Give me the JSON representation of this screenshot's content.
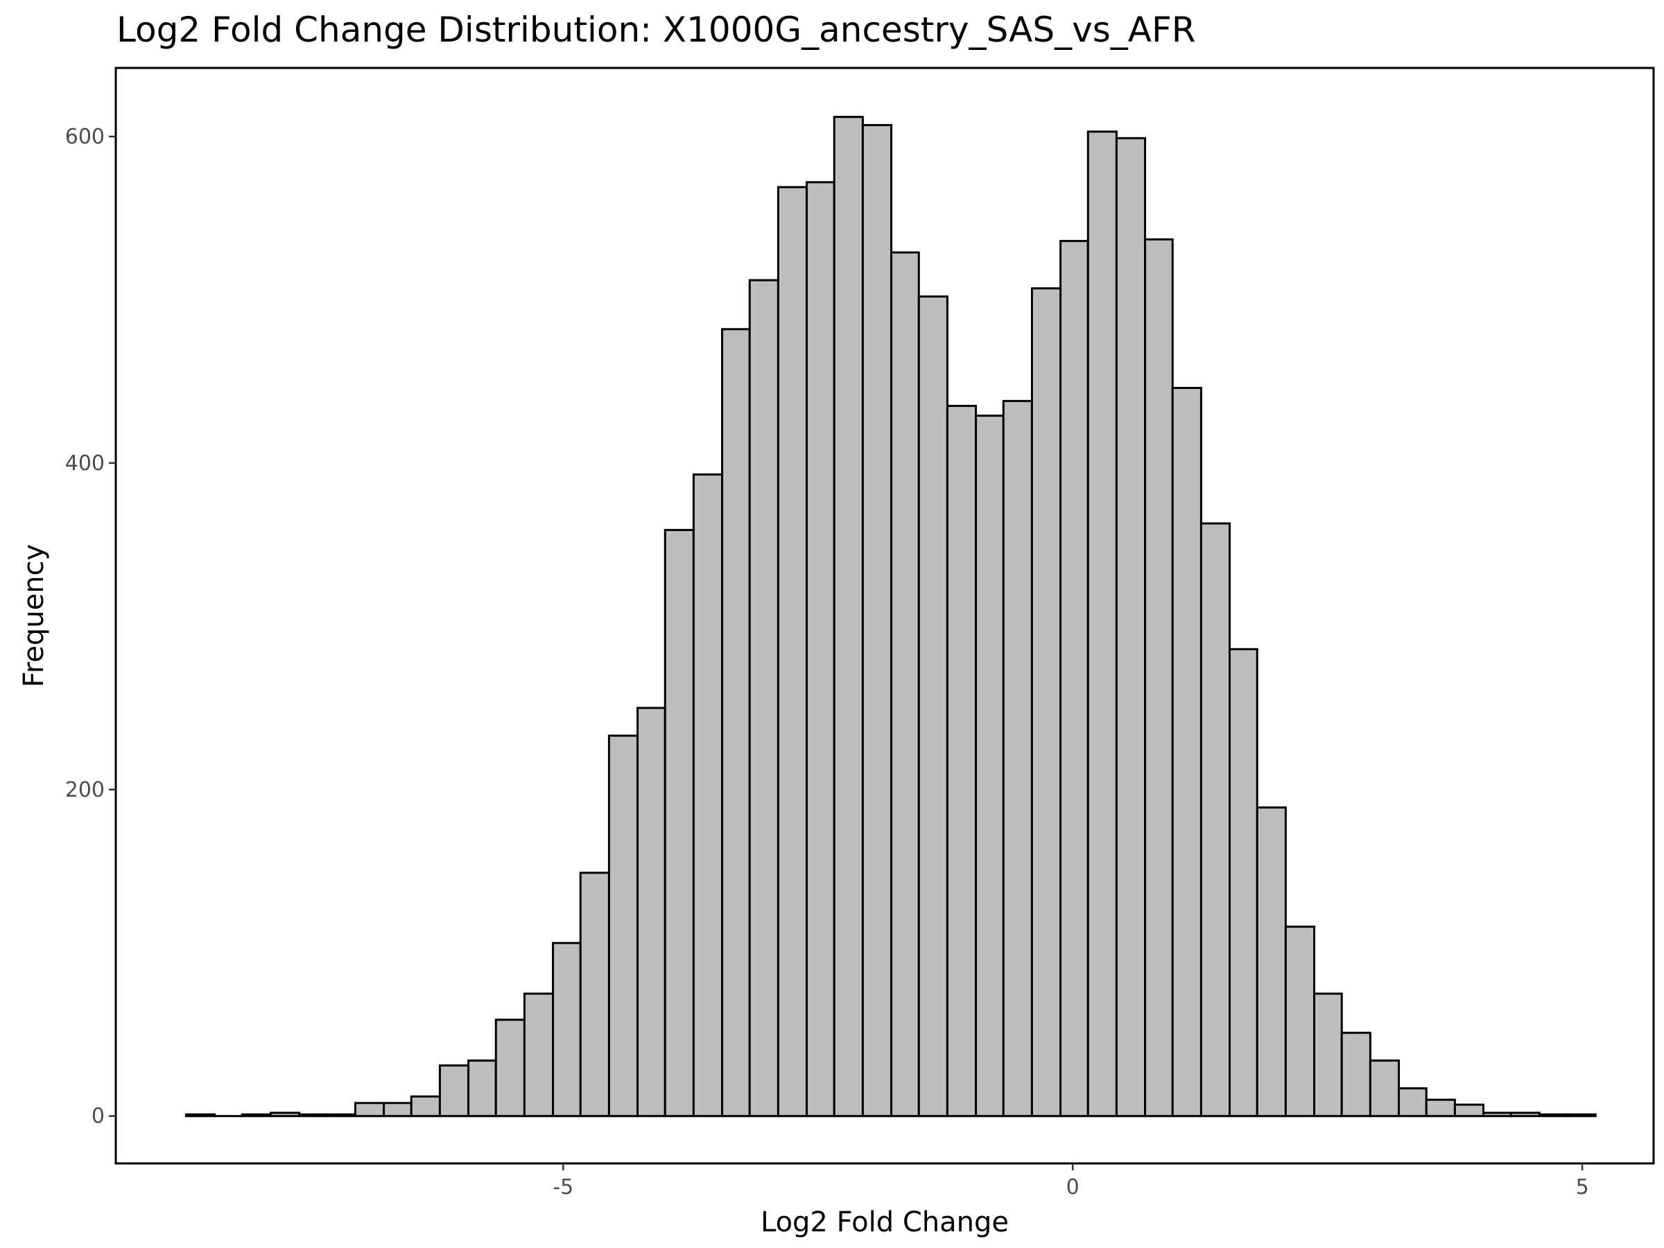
{
  "chart_data": {
    "type": "histogram",
    "title": "Log2 Fold Change Distribution: X1000G_ancestry_SAS_vs_AFR",
    "xlabel": "Log2 Fold Change",
    "ylabel": "Frequency",
    "xlim": [
      -9.39,
      5.7
    ],
    "ylim": [
      -29,
      642
    ],
    "x_ticks": [
      -5,
      0,
      5
    ],
    "x_tick_labels": [
      "-5",
      "0",
      "5"
    ],
    "y_ticks": [
      0,
      200,
      400,
      600
    ],
    "y_tick_labels": [
      "0",
      "200",
      "400",
      "600"
    ],
    "grid": false,
    "colors": {
      "bar_fill": "#bebebe",
      "bar_stroke": "#000000"
    },
    "bins": [
      {
        "x0": -8.7,
        "x1": -8.42,
        "count": 1
      },
      {
        "x0": -8.42,
        "x1": -8.15,
        "count": 0
      },
      {
        "x0": -8.15,
        "x1": -7.87,
        "count": 1
      },
      {
        "x0": -7.87,
        "x1": -7.59,
        "count": 2
      },
      {
        "x0": -7.59,
        "x1": -7.32,
        "count": 1
      },
      {
        "x0": -7.32,
        "x1": -7.04,
        "count": 1
      },
      {
        "x0": -7.04,
        "x1": -6.76,
        "count": 8
      },
      {
        "x0": -6.76,
        "x1": -6.49,
        "count": 8
      },
      {
        "x0": -6.49,
        "x1": -6.21,
        "count": 12
      },
      {
        "x0": -6.21,
        "x1": -5.93,
        "count": 31
      },
      {
        "x0": -5.93,
        "x1": -5.66,
        "count": 34
      },
      {
        "x0": -5.66,
        "x1": -5.38,
        "count": 59
      },
      {
        "x0": -5.38,
        "x1": -5.1,
        "count": 75
      },
      {
        "x0": -5.1,
        "x1": -4.83,
        "count": 106
      },
      {
        "x0": -4.83,
        "x1": -4.55,
        "count": 149
      },
      {
        "x0": -4.55,
        "x1": -4.27,
        "count": 233
      },
      {
        "x0": -4.27,
        "x1": -4.0,
        "count": 250
      },
      {
        "x0": -4.0,
        "x1": -3.72,
        "count": 359
      },
      {
        "x0": -3.72,
        "x1": -3.44,
        "count": 393
      },
      {
        "x0": -3.44,
        "x1": -3.17,
        "count": 482
      },
      {
        "x0": -3.17,
        "x1": -2.89,
        "count": 512
      },
      {
        "x0": -2.89,
        "x1": -2.61,
        "count": 569
      },
      {
        "x0": -2.61,
        "x1": -2.34,
        "count": 572
      },
      {
        "x0": -2.34,
        "x1": -2.06,
        "count": 612
      },
      {
        "x0": -2.06,
        "x1": -1.78,
        "count": 607
      },
      {
        "x0": -1.78,
        "x1": -1.51,
        "count": 529
      },
      {
        "x0": -1.51,
        "x1": -1.23,
        "count": 502
      },
      {
        "x0": -1.23,
        "x1": -0.95,
        "count": 435
      },
      {
        "x0": -0.95,
        "x1": -0.68,
        "count": 429
      },
      {
        "x0": -0.68,
        "x1": -0.4,
        "count": 438
      },
      {
        "x0": -0.4,
        "x1": -0.12,
        "count": 507
      },
      {
        "x0": -0.12,
        "x1": 0.15,
        "count": 536
      },
      {
        "x0": 0.15,
        "x1": 0.43,
        "count": 603
      },
      {
        "x0": 0.43,
        "x1": 0.71,
        "count": 599
      },
      {
        "x0": 0.71,
        "x1": 0.98,
        "count": 537
      },
      {
        "x0": 0.98,
        "x1": 1.26,
        "count": 446
      },
      {
        "x0": 1.26,
        "x1": 1.54,
        "count": 363
      },
      {
        "x0": 1.54,
        "x1": 1.81,
        "count": 286
      },
      {
        "x0": 1.81,
        "x1": 2.09,
        "count": 189
      },
      {
        "x0": 2.09,
        "x1": 2.37,
        "count": 116
      },
      {
        "x0": 2.37,
        "x1": 2.64,
        "count": 75
      },
      {
        "x0": 2.64,
        "x1": 2.92,
        "count": 51
      },
      {
        "x0": 2.92,
        "x1": 3.2,
        "count": 34
      },
      {
        "x0": 3.2,
        "x1": 3.47,
        "count": 17
      },
      {
        "x0": 3.47,
        "x1": 3.75,
        "count": 10
      },
      {
        "x0": 3.75,
        "x1": 4.03,
        "count": 7
      },
      {
        "x0": 4.03,
        "x1": 4.3,
        "count": 2
      },
      {
        "x0": 4.3,
        "x1": 4.58,
        "count": 2
      },
      {
        "x0": 4.58,
        "x1": 4.86,
        "count": 1
      },
      {
        "x0": 4.86,
        "x1": 5.13,
        "count": 1
      }
    ]
  }
}
